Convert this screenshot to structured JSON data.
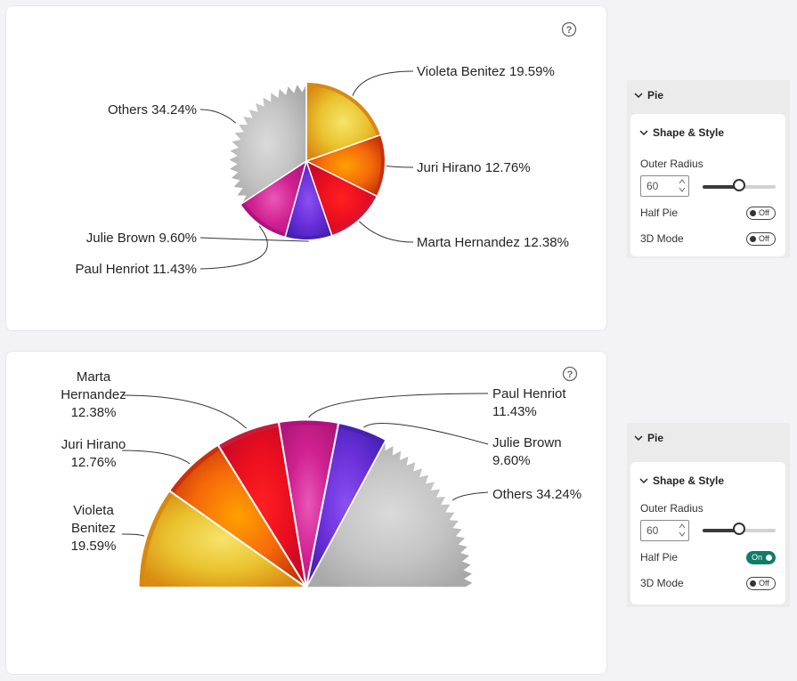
{
  "chart_data": [
    {
      "type": "pie",
      "variant": "full",
      "categories": [
        "Violeta Benitez",
        "Juri Hirano",
        "Marta Hernandez",
        "Julie Brown",
        "Paul Henriot",
        "Others"
      ],
      "values": [
        19.59,
        12.76,
        12.38,
        9.6,
        11.43,
        34.24
      ],
      "labels": [
        "Violeta Benitez 19.59%",
        "Juri Hirano 12.76%",
        "Marta Hernandez 12.38%",
        "Julie Brown 9.60%",
        "Paul Henriot 11.43%",
        "Others 34.24%"
      ]
    },
    {
      "type": "pie",
      "variant": "half",
      "categories": [
        "Violeta Benitez",
        "Juri Hirano",
        "Marta Hernandez",
        "Paul Henriot",
        "Julie Brown",
        "Others"
      ],
      "values": [
        19.59,
        12.76,
        12.38,
        11.43,
        9.6,
        34.24
      ],
      "labels": [
        [
          "Violeta",
          "Benitez",
          "19.59%"
        ],
        [
          "Juri Hirano",
          "12.76%"
        ],
        [
          "Marta",
          "Hernandez",
          "12.38%"
        ],
        [
          "Paul Henriot",
          "11.43%"
        ],
        [
          "Julie Brown",
          "9.60%"
        ],
        [
          "Others 34.24%"
        ]
      ]
    }
  ],
  "colors": {
    "violeta": "#e9c22e",
    "juri": "#f56a0a",
    "marta": "#e90e20",
    "paul": "#d02090",
    "julie": "#6a2fd8",
    "others": "#c4c4c4",
    "toggle_on": "#107c68"
  },
  "help_icon": "question-circle-icon",
  "panels": [
    {
      "title": "Pie",
      "section": "Shape & Style",
      "outer_radius_label": "Outer Radius",
      "outer_radius_value": "60",
      "outer_radius_fraction": 0.5,
      "half_pie_label": "Half Pie",
      "half_pie_state": "Off",
      "mode3d_label": "3D Mode",
      "mode3d_state": "Off"
    },
    {
      "title": "Pie",
      "section": "Shape & Style",
      "outer_radius_label": "Outer Radius",
      "outer_radius_value": "60",
      "outer_radius_fraction": 0.5,
      "half_pie_label": "Half Pie",
      "half_pie_state": "On",
      "mode3d_label": "3D Mode",
      "mode3d_state": "Off"
    }
  ]
}
